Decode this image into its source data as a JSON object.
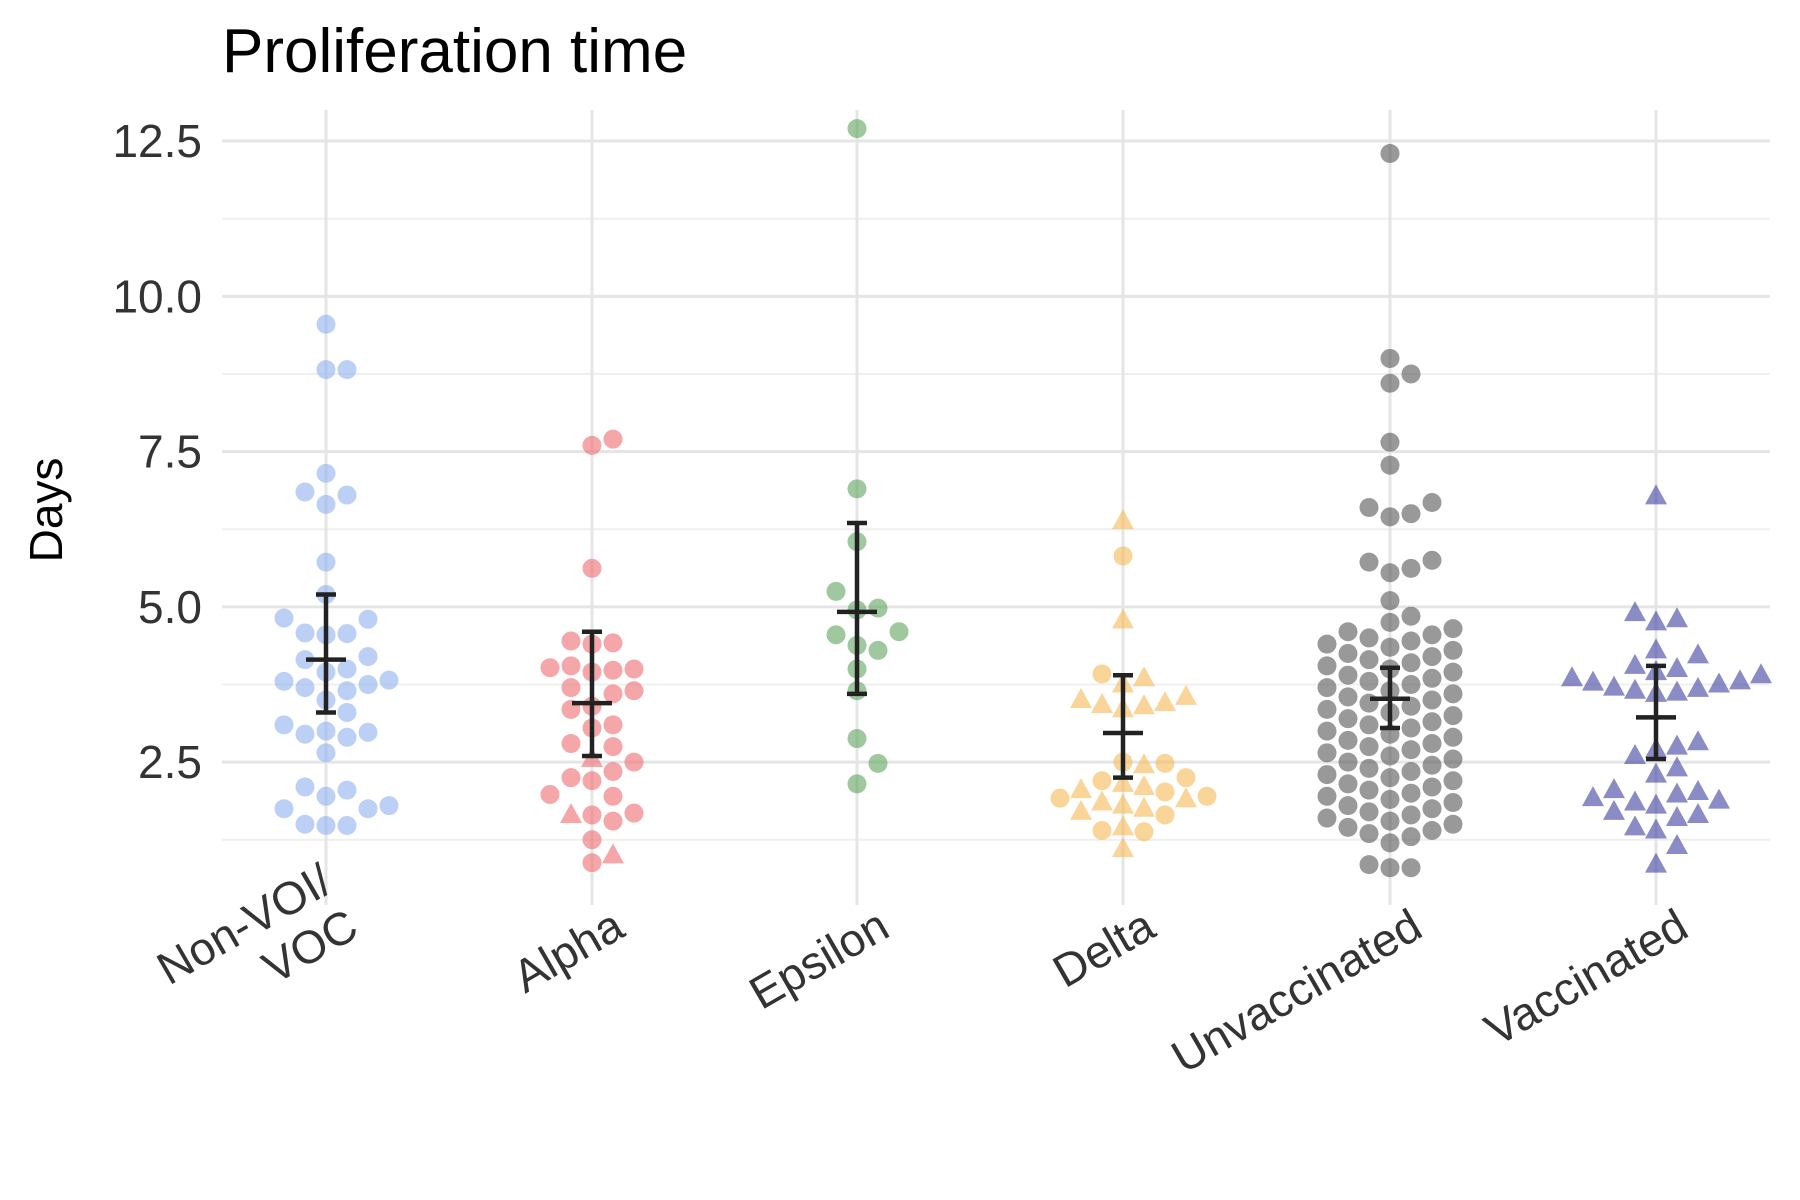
{
  "chart_data": {
    "type": "scatter",
    "title": "Proliferation time",
    "xlabel": "",
    "ylabel": "Days",
    "ylim": [
      0.2,
      13.0
    ],
    "yticks": [
      2.5,
      5.0,
      7.5,
      10.0,
      12.5
    ],
    "ytick_labels": [
      "2.5",
      "5.0",
      "7.5",
      "10.0",
      "12.5"
    ],
    "grid": true,
    "legend": "none",
    "categories": [
      {
        "label_lines": [
          "Non-VOI/",
          "VOC"
        ]
      },
      {
        "label_lines": [
          "Alpha"
        ]
      },
      {
        "label_lines": [
          "Epsilon"
        ]
      },
      {
        "label_lines": [
          "Delta"
        ]
      },
      {
        "label_lines": [
          "Unvaccinated"
        ]
      },
      {
        "label_lines": [
          "Vaccinated"
        ]
      }
    ],
    "groups": [
      {
        "color": "#8fb0ee",
        "mean": 4.15,
        "lower": 3.3,
        "upper": 5.2,
        "points": [
          {
            "y": 9.55,
            "s": "c"
          },
          {
            "y": 8.82,
            "s": "c"
          },
          {
            "y": 8.82,
            "s": "c"
          },
          {
            "y": 7.15,
            "s": "c"
          },
          {
            "y": 6.85,
            "s": "c"
          },
          {
            "y": 6.8,
            "s": "c"
          },
          {
            "y": 6.65,
            "s": "c"
          },
          {
            "y": 5.72,
            "s": "c"
          },
          {
            "y": 5.2,
            "s": "c"
          },
          {
            "y": 4.82,
            "s": "c"
          },
          {
            "y": 4.8,
            "s": "c"
          },
          {
            "y": 4.58,
            "s": "c"
          },
          {
            "y": 4.57,
            "s": "c"
          },
          {
            "y": 4.55,
            "s": "c"
          },
          {
            "y": 4.2,
            "s": "c"
          },
          {
            "y": 4.15,
            "s": "c"
          },
          {
            "y": 4.0,
            "s": "c"
          },
          {
            "y": 3.95,
            "s": "c"
          },
          {
            "y": 3.82,
            "s": "c"
          },
          {
            "y": 3.8,
            "s": "c"
          },
          {
            "y": 3.75,
            "s": "c"
          },
          {
            "y": 3.7,
            "s": "c"
          },
          {
            "y": 3.65,
            "s": "c"
          },
          {
            "y": 3.5,
            "s": "c"
          },
          {
            "y": 3.3,
            "s": "c"
          },
          {
            "y": 3.1,
            "s": "c"
          },
          {
            "y": 3.0,
            "s": "c"
          },
          {
            "y": 2.98,
            "s": "c"
          },
          {
            "y": 2.95,
            "s": "c"
          },
          {
            "y": 2.9,
            "s": "c"
          },
          {
            "y": 2.65,
            "s": "c"
          },
          {
            "y": 2.1,
            "s": "c"
          },
          {
            "y": 2.05,
            "s": "c"
          },
          {
            "y": 1.95,
            "s": "c"
          },
          {
            "y": 1.8,
            "s": "c"
          },
          {
            "y": 1.75,
            "s": "c"
          },
          {
            "y": 1.75,
            "s": "c"
          },
          {
            "y": 1.5,
            "s": "c"
          },
          {
            "y": 1.48,
            "s": "c"
          },
          {
            "y": 1.48,
            "s": "c"
          }
        ]
      },
      {
        "color": "#ee6b6e",
        "mean": 3.45,
        "lower": 2.6,
        "upper": 4.6,
        "points": [
          {
            "y": 7.7,
            "s": "c"
          },
          {
            "y": 7.6,
            "s": "c"
          },
          {
            "y": 5.62,
            "s": "c"
          },
          {
            "y": 4.45,
            "s": "c"
          },
          {
            "y": 4.42,
            "s": "c"
          },
          {
            "y": 4.4,
            "s": "c"
          },
          {
            "y": 4.05,
            "s": "c"
          },
          {
            "y": 4.02,
            "s": "c"
          },
          {
            "y": 4.0,
            "s": "c"
          },
          {
            "y": 3.98,
            "s": "c"
          },
          {
            "y": 3.95,
            "s": "c"
          },
          {
            "y": 3.7,
            "s": "c"
          },
          {
            "y": 3.65,
            "s": "c"
          },
          {
            "y": 3.6,
            "s": "c"
          },
          {
            "y": 3.4,
            "s": "c"
          },
          {
            "y": 3.35,
            "s": "c"
          },
          {
            "y": 3.1,
            "s": "c"
          },
          {
            "y": 3.05,
            "s": "c"
          },
          {
            "y": 2.8,
            "s": "c"
          },
          {
            "y": 2.75,
            "s": "c"
          },
          {
            "y": 2.55,
            "s": "t"
          },
          {
            "y": 2.5,
            "s": "c"
          },
          {
            "y": 2.35,
            "s": "c"
          },
          {
            "y": 2.25,
            "s": "c"
          },
          {
            "y": 2.2,
            "s": "c"
          },
          {
            "y": 1.98,
            "s": "c"
          },
          {
            "y": 1.95,
            "s": "c"
          },
          {
            "y": 1.68,
            "s": "c"
          },
          {
            "y": 1.65,
            "s": "c"
          },
          {
            "y": 1.65,
            "s": "t"
          },
          {
            "y": 1.55,
            "s": "c"
          },
          {
            "y": 1.25,
            "s": "c"
          },
          {
            "y": 1.0,
            "s": "t"
          },
          {
            "y": 0.88,
            "s": "c"
          }
        ]
      },
      {
        "color": "#5fa35f",
        "mean": 4.92,
        "lower": 3.6,
        "upper": 6.35,
        "points": [
          {
            "y": 12.7,
            "s": "c"
          },
          {
            "y": 6.9,
            "s": "c"
          },
          {
            "y": 6.05,
            "s": "c"
          },
          {
            "y": 5.25,
            "s": "c"
          },
          {
            "y": 4.98,
            "s": "c"
          },
          {
            "y": 4.95,
            "s": "c"
          },
          {
            "y": 4.6,
            "s": "c"
          },
          {
            "y": 4.55,
            "s": "c"
          },
          {
            "y": 4.38,
            "s": "c"
          },
          {
            "y": 4.3,
            "s": "c"
          },
          {
            "y": 4.0,
            "s": "c"
          },
          {
            "y": 3.65,
            "s": "c"
          },
          {
            "y": 2.88,
            "s": "c"
          },
          {
            "y": 2.48,
            "s": "c"
          },
          {
            "y": 2.15,
            "s": "c"
          }
        ]
      },
      {
        "color": "#f7b955",
        "mean": 2.97,
        "lower": 2.25,
        "upper": 3.9,
        "points": [
          {
            "y": 6.38,
            "s": "t"
          },
          {
            "y": 5.82,
            "s": "c"
          },
          {
            "y": 4.78,
            "s": "t"
          },
          {
            "y": 3.92,
            "s": "c"
          },
          {
            "y": 3.85,
            "s": "t"
          },
          {
            "y": 3.75,
            "s": "t"
          },
          {
            "y": 3.55,
            "s": "t"
          },
          {
            "y": 3.5,
            "s": "t"
          },
          {
            "y": 3.45,
            "s": "t"
          },
          {
            "y": 3.42,
            "s": "t"
          },
          {
            "y": 3.4,
            "s": "t"
          },
          {
            "y": 3.35,
            "s": "t"
          },
          {
            "y": 2.5,
            "s": "c"
          },
          {
            "y": 2.48,
            "s": "c"
          },
          {
            "y": 2.45,
            "s": "t"
          },
          {
            "y": 2.25,
            "s": "c"
          },
          {
            "y": 2.2,
            "s": "c"
          },
          {
            "y": 2.15,
            "s": "t"
          },
          {
            "y": 2.1,
            "s": "t"
          },
          {
            "y": 2.05,
            "s": "t"
          },
          {
            "y": 2.02,
            "s": "c"
          },
          {
            "y": 1.95,
            "s": "c"
          },
          {
            "y": 1.92,
            "s": "c"
          },
          {
            "y": 1.9,
            "s": "t"
          },
          {
            "y": 1.85,
            "s": "t"
          },
          {
            "y": 1.8,
            "s": "t"
          },
          {
            "y": 1.75,
            "s": "t"
          },
          {
            "y": 1.7,
            "s": "t"
          },
          {
            "y": 1.65,
            "s": "c"
          },
          {
            "y": 1.45,
            "s": "t"
          },
          {
            "y": 1.4,
            "s": "c"
          },
          {
            "y": 1.38,
            "s": "c"
          },
          {
            "y": 1.1,
            "s": "t"
          }
        ]
      },
      {
        "color": "#555555",
        "mean": 3.52,
        "lower": 3.05,
        "upper": 4.02,
        "points": [
          {
            "y": 12.3,
            "s": "c"
          },
          {
            "y": 9.0,
            "s": "c"
          },
          {
            "y": 8.75,
            "s": "c"
          },
          {
            "y": 8.6,
            "s": "c"
          },
          {
            "y": 7.65,
            "s": "c"
          },
          {
            "y": 7.28,
            "s": "c"
          },
          {
            "y": 6.68,
            "s": "c"
          },
          {
            "y": 6.6,
            "s": "c"
          },
          {
            "y": 6.5,
            "s": "c"
          },
          {
            "y": 6.45,
            "s": "c"
          },
          {
            "y": 5.75,
            "s": "c"
          },
          {
            "y": 5.72,
            "s": "c"
          },
          {
            "y": 5.62,
            "s": "c"
          },
          {
            "y": 5.55,
            "s": "c"
          },
          {
            "y": 5.1,
            "s": "c"
          },
          {
            "y": 4.85,
            "s": "c"
          },
          {
            "y": 4.75,
            "s": "c"
          },
          {
            "y": 4.65,
            "s": "c"
          },
          {
            "y": 4.6,
            "s": "c"
          },
          {
            "y": 4.55,
            "s": "c"
          },
          {
            "y": 4.5,
            "s": "c"
          },
          {
            "y": 4.45,
            "s": "c"
          },
          {
            "y": 4.4,
            "s": "c"
          },
          {
            "y": 4.35,
            "s": "c"
          },
          {
            "y": 4.3,
            "s": "c"
          },
          {
            "y": 4.25,
            "s": "c"
          },
          {
            "y": 4.2,
            "s": "c"
          },
          {
            "y": 4.15,
            "s": "c"
          },
          {
            "y": 4.1,
            "s": "c"
          },
          {
            "y": 4.05,
            "s": "c"
          },
          {
            "y": 4.0,
            "s": "c"
          },
          {
            "y": 3.95,
            "s": "c"
          },
          {
            "y": 3.9,
            "s": "c"
          },
          {
            "y": 3.85,
            "s": "c"
          },
          {
            "y": 3.8,
            "s": "c"
          },
          {
            "y": 3.75,
            "s": "c"
          },
          {
            "y": 3.7,
            "s": "c"
          },
          {
            "y": 3.65,
            "s": "c"
          },
          {
            "y": 3.6,
            "s": "c"
          },
          {
            "y": 3.55,
            "s": "c"
          },
          {
            "y": 3.5,
            "s": "c"
          },
          {
            "y": 3.45,
            "s": "c"
          },
          {
            "y": 3.4,
            "s": "c"
          },
          {
            "y": 3.35,
            "s": "c"
          },
          {
            "y": 3.3,
            "s": "c"
          },
          {
            "y": 3.25,
            "s": "c"
          },
          {
            "y": 3.2,
            "s": "c"
          },
          {
            "y": 3.15,
            "s": "c"
          },
          {
            "y": 3.1,
            "s": "c"
          },
          {
            "y": 3.05,
            "s": "c"
          },
          {
            "y": 3.0,
            "s": "c"
          },
          {
            "y": 2.95,
            "s": "c"
          },
          {
            "y": 2.9,
            "s": "c"
          },
          {
            "y": 2.85,
            "s": "c"
          },
          {
            "y": 2.8,
            "s": "c"
          },
          {
            "y": 2.75,
            "s": "c"
          },
          {
            "y": 2.7,
            "s": "c"
          },
          {
            "y": 2.65,
            "s": "c"
          },
          {
            "y": 2.6,
            "s": "c"
          },
          {
            "y": 2.55,
            "s": "c"
          },
          {
            "y": 2.5,
            "s": "c"
          },
          {
            "y": 2.45,
            "s": "c"
          },
          {
            "y": 2.4,
            "s": "c"
          },
          {
            "y": 2.35,
            "s": "c"
          },
          {
            "y": 2.3,
            "s": "c"
          },
          {
            "y": 2.25,
            "s": "c"
          },
          {
            "y": 2.2,
            "s": "c"
          },
          {
            "y": 2.15,
            "s": "c"
          },
          {
            "y": 2.1,
            "s": "c"
          },
          {
            "y": 2.05,
            "s": "c"
          },
          {
            "y": 2.0,
            "s": "c"
          },
          {
            "y": 1.95,
            "s": "c"
          },
          {
            "y": 1.9,
            "s": "c"
          },
          {
            "y": 1.85,
            "s": "c"
          },
          {
            "y": 1.8,
            "s": "c"
          },
          {
            "y": 1.75,
            "s": "c"
          },
          {
            "y": 1.7,
            "s": "c"
          },
          {
            "y": 1.65,
            "s": "c"
          },
          {
            "y": 1.6,
            "s": "c"
          },
          {
            "y": 1.55,
            "s": "c"
          },
          {
            "y": 1.5,
            "s": "c"
          },
          {
            "y": 1.45,
            "s": "c"
          },
          {
            "y": 1.4,
            "s": "c"
          },
          {
            "y": 1.35,
            "s": "c"
          },
          {
            "y": 1.3,
            "s": "c"
          },
          {
            "y": 1.2,
            "s": "c"
          },
          {
            "y": 0.85,
            "s": "c"
          },
          {
            "y": 0.8,
            "s": "c"
          },
          {
            "y": 0.8,
            "s": "c"
          }
        ]
      },
      {
        "color": "#3d3d9e",
        "mean": 3.22,
        "lower": 2.55,
        "upper": 4.05,
        "points": [
          {
            "y": 6.78,
            "s": "t"
          },
          {
            "y": 4.9,
            "s": "t"
          },
          {
            "y": 4.8,
            "s": "t"
          },
          {
            "y": 4.75,
            "s": "t"
          },
          {
            "y": 4.3,
            "s": "t"
          },
          {
            "y": 4.22,
            "s": "t"
          },
          {
            "y": 4.05,
            "s": "t"
          },
          {
            "y": 4.0,
            "s": "t"
          },
          {
            "y": 3.95,
            "s": "t"
          },
          {
            "y": 3.9,
            "s": "t"
          },
          {
            "y": 3.85,
            "s": "t"
          },
          {
            "y": 3.8,
            "s": "t"
          },
          {
            "y": 3.78,
            "s": "t"
          },
          {
            "y": 3.75,
            "s": "t"
          },
          {
            "y": 3.7,
            "s": "t"
          },
          {
            "y": 3.68,
            "s": "t"
          },
          {
            "y": 3.65,
            "s": "t"
          },
          {
            "y": 3.62,
            "s": "t"
          },
          {
            "y": 3.6,
            "s": "t"
          },
          {
            "y": 2.82,
            "s": "t"
          },
          {
            "y": 2.75,
            "s": "t"
          },
          {
            "y": 2.7,
            "s": "t"
          },
          {
            "y": 2.6,
            "s": "t"
          },
          {
            "y": 2.4,
            "s": "t"
          },
          {
            "y": 2.3,
            "s": "t"
          },
          {
            "y": 2.05,
            "s": "t"
          },
          {
            "y": 2.02,
            "s": "t"
          },
          {
            "y": 1.98,
            "s": "t"
          },
          {
            "y": 1.92,
            "s": "t"
          },
          {
            "y": 1.88,
            "s": "t"
          },
          {
            "y": 1.85,
            "s": "t"
          },
          {
            "y": 1.8,
            "s": "t"
          },
          {
            "y": 1.7,
            "s": "t"
          },
          {
            "y": 1.65,
            "s": "t"
          },
          {
            "y": 1.6,
            "s": "t"
          },
          {
            "y": 1.45,
            "s": "t"
          },
          {
            "y": 1.4,
            "s": "t"
          },
          {
            "y": 1.15,
            "s": "t"
          },
          {
            "y": 0.85,
            "s": "t"
          }
        ]
      }
    ]
  }
}
